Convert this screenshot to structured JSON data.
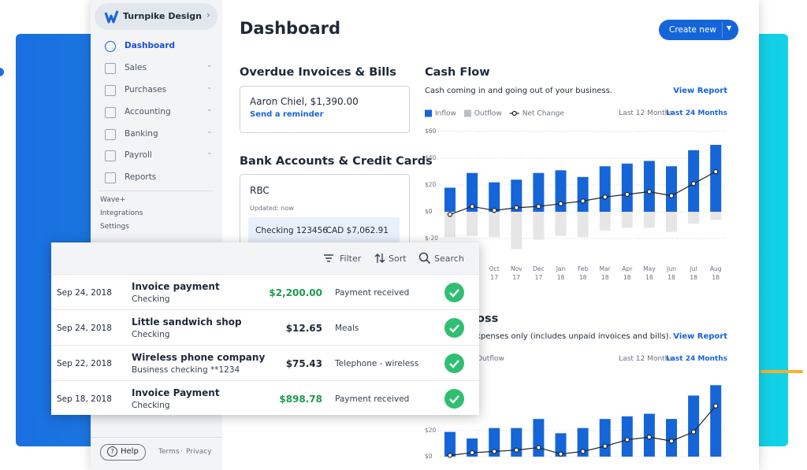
{
  "sidebar": {
    "company": "Turnpike Design",
    "nav": [
      "Dashboard",
      "Sales",
      "Purchases",
      "Accounting",
      "Banking",
      "Payroll",
      "Reports"
    ],
    "links": [
      "Wave+",
      "Integrations",
      "Settings"
    ],
    "help": "Help",
    "footer": [
      "Terms",
      "Privacy"
    ]
  },
  "header": {
    "title": "Dashboard",
    "button": "Create new"
  },
  "overdue": {
    "title": "Overdue Invoices & Bills",
    "item": "Aaron Chiel, $1,390.00",
    "action": "Send a reminder"
  },
  "bank": {
    "title": "Bank Accounts & Credit Cards",
    "name": "RBC",
    "updated": "Updated: now",
    "account": "Checking 123456",
    "balance": "CAD $7,062.91"
  },
  "transactions": {
    "tools": [
      "Filter",
      "Sort",
      "Search"
    ],
    "rows": [
      {
        "date": "Sep 24, 2018",
        "name": "Invoice payment",
        "account": "Checking",
        "amount": "$2,200.00",
        "category": "Payment received",
        "color": "#1e9b50"
      },
      {
        "date": "Sep 24, 2018",
        "name": "Little sandwich shop",
        "account": "Checking",
        "amount": "$12.65",
        "category": "Meals",
        "color": "#1f2937"
      },
      {
        "date": "Sep 22, 2018",
        "name": "Wireless phone company",
        "account": "Business checking **1234",
        "amount": "$75.43",
        "category": "Telephone - wireless",
        "color": "#1f2937"
      },
      {
        "date": "Sep 18, 2018",
        "name": "Invoice Payment",
        "account": "Checking",
        "amount": "$898.78",
        "category": "Payment received",
        "color": "#1e9b50"
      }
    ]
  },
  "cash_flow": {
    "title": "Cash Flow",
    "subtitle": "Cash coming in and going out of your business.",
    "link": "View Report",
    "ranges": [
      "Last 12 Months",
      "Last 24 Months"
    ],
    "chart": {
      "type": "bar",
      "categories": [
        null,
        null,
        {
          "month": "Oct",
          "year": "17"
        },
        {
          "month": "Nov",
          "year": "17"
        },
        {
          "month": "Dec",
          "year": "17"
        },
        {
          "month": "Jan",
          "year": "18"
        },
        {
          "month": "Feb",
          "year": "18"
        },
        {
          "month": "Mar",
          "year": "18"
        },
        {
          "month": "Apr",
          "year": "18"
        },
        {
          "month": "May",
          "year": "18"
        },
        {
          "month": "Jun",
          "year": "18"
        },
        {
          "month": "Jul",
          "year": "18"
        },
        {
          "month": "Aug",
          "year": "18"
        }
      ],
      "series": [
        {
          "name": "Inflow",
          "type": "bar",
          "color": "#1565d8",
          "values": [
            18,
            29,
            22,
            24,
            29,
            31,
            26,
            34,
            36,
            38,
            34,
            46,
            50
          ]
        },
        {
          "name": "Outflow",
          "type": "bar",
          "color": "#e6e6e6",
          "values": [
            -19,
            -18,
            -19,
            -28,
            -21,
            -18,
            -19,
            -14,
            -12,
            -12,
            -15,
            -9,
            -6
          ]
        },
        {
          "name": "Net Change",
          "type": "line",
          "color": "#222222",
          "values": [
            -2,
            4,
            1,
            3,
            4,
            6,
            8,
            11,
            13,
            15,
            12,
            21,
            30
          ]
        }
      ],
      "ylim": [
        -30,
        60
      ],
      "yticks": [
        {
          "value": 60,
          "label": "$60"
        },
        {
          "value": 40,
          "label": "$40"
        },
        {
          "value": 20,
          "label": "$20"
        },
        {
          "value": 0,
          "label": "$0"
        },
        {
          "value": -20,
          "label": "$-20"
        }
      ],
      "grid": true
    }
  },
  "profit_loss": {
    "title": "oss",
    "subtitle": "xpenses only (includes unpaid invoices and bills).",
    "link": "View Report",
    "ranges": [
      "Last 12 Months",
      "Last 24 Months"
    ],
    "legend": "Outflow",
    "chart": {
      "type": "bar",
      "series": [
        {
          "type": "bar",
          "color": "#1565d8",
          "values": [
            19,
            14,
            22,
            22,
            29,
            18,
            22,
            29,
            31,
            33,
            29,
            47,
            55
          ]
        },
        {
          "type": "line",
          "color": "#222222",
          "values": [
            1,
            3,
            4,
            5,
            7,
            2,
            4,
            8,
            13,
            15,
            12,
            19,
            39
          ]
        }
      ],
      "ylim": [
        -10,
        60
      ],
      "yticks": [
        {
          "value": 20,
          "label": "$20"
        },
        {
          "value": 0,
          "label": "$0"
        }
      ],
      "grid": true
    }
  }
}
